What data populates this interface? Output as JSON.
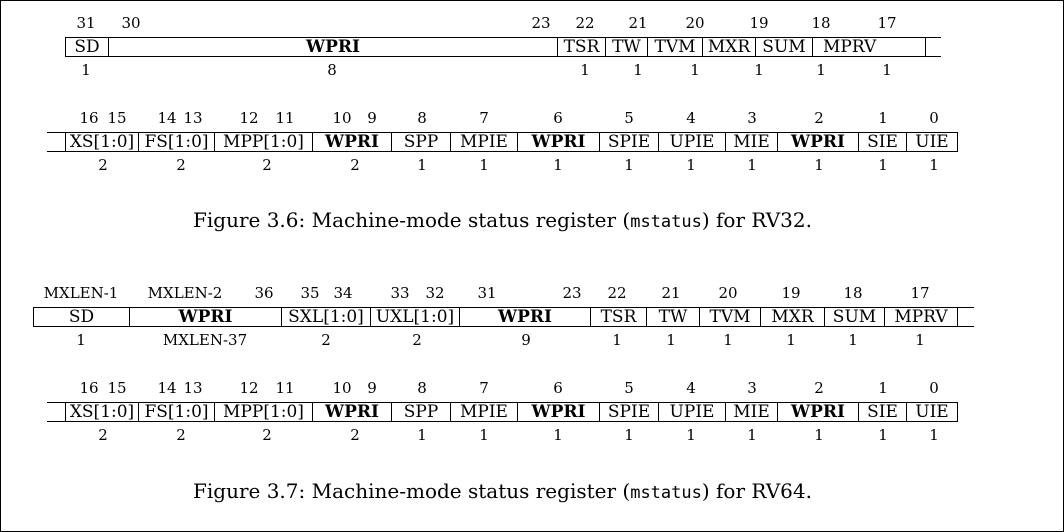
{
  "figures": [
    {
      "number": "Figure 3.6:",
      "caption_pre": "Machine-mode status register (",
      "caption_code": "mstatus",
      "caption_post": ") for RV32.",
      "rows": [
        {
          "bit_labels": [
            "31",
            "30",
            "23",
            "22",
            "21",
            "20",
            "19",
            "18",
            "17"
          ],
          "fields": [
            "SD",
            "WPRI",
            "TSR",
            "TW",
            "TVM",
            "MXR",
            "SUM",
            "MPRV",
            ""
          ],
          "widths": [
            "1",
            "8",
            "1",
            "1",
            "1",
            "1",
            "1",
            "1"
          ]
        },
        {
          "bit_labels": [
            "16",
            "15",
            "14",
            "13",
            "12",
            "11",
            "10",
            "9",
            "8",
            "7",
            "6",
            "5",
            "4",
            "3",
            "2",
            "1",
            "0"
          ],
          "fields": [
            "XS[1:0]",
            "FS[1:0]",
            "MPP[1:0]",
            "WPRI",
            "SPP",
            "MPIE",
            "WPRI",
            "SPIE",
            "UPIE",
            "MIE",
            "WPRI",
            "SIE",
            "UIE"
          ],
          "widths": [
            "2",
            "2",
            "2",
            "2",
            "1",
            "1",
            "1",
            "1",
            "1",
            "1",
            "1",
            "1",
            "1"
          ]
        }
      ]
    },
    {
      "number": "Figure 3.7:",
      "caption_pre": "Machine-mode status register (",
      "caption_code": "mstatus",
      "caption_post": ") for RV64.",
      "rows": [
        {
          "bit_labels": [
            "MXLEN-1",
            "MXLEN-2",
            "36",
            "35",
            "34",
            "33",
            "32",
            "31",
            "23",
            "22",
            "21",
            "20",
            "19",
            "18",
            "17"
          ],
          "fields": [
            "SD",
            "WPRI",
            "SXL[1:0]",
            "UXL[1:0]",
            "WPRI",
            "TSR",
            "TW",
            "TVM",
            "MXR",
            "SUM",
            "MPRV",
            ""
          ],
          "widths": [
            "1",
            "MXLEN-37",
            "2",
            "2",
            "9",
            "1",
            "1",
            "1",
            "1",
            "1",
            "1"
          ]
        },
        {
          "bit_labels": [
            "16",
            "15",
            "14",
            "13",
            "12",
            "11",
            "10",
            "9",
            "8",
            "7",
            "6",
            "5",
            "4",
            "3",
            "2",
            "1",
            "0"
          ],
          "fields": [
            "XS[1:0]",
            "FS[1:0]",
            "MPP[1:0]",
            "WPRI",
            "SPP",
            "MPIE",
            "WPRI",
            "SPIE",
            "UPIE",
            "MIE",
            "WPRI",
            "SIE",
            "UIE"
          ],
          "widths": [
            "2",
            "2",
            "2",
            "2",
            "1",
            "1",
            "1",
            "1",
            "1",
            "1",
            "1",
            "1",
            "1"
          ]
        }
      ]
    }
  ]
}
